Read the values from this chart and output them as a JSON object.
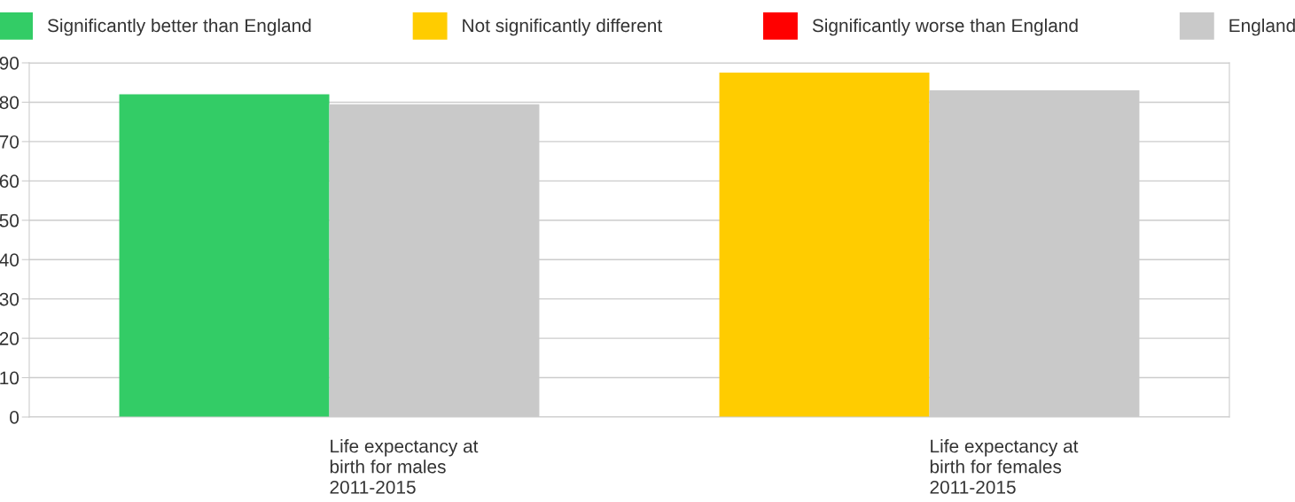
{
  "chart_data": {
    "type": "bar",
    "categories": [
      "Life expectancy at\nbirth for males\n2011-2015",
      "Life expectancy at\nbirth for females\n2011-2015"
    ],
    "series": [
      {
        "name": "Significantly better than England",
        "color": "#33cc66",
        "values": [
          82.0,
          null
        ]
      },
      {
        "name": "Not significantly different",
        "color": "#ffcc00",
        "values": [
          null,
          87.5
        ]
      },
      {
        "name": "Significantly worse than England",
        "color": "#ff0000",
        "values": [
          null,
          null
        ]
      },
      {
        "name": "England",
        "color": "#c9c9c9",
        "values": [
          79.5,
          83.0
        ]
      }
    ],
    "ylim": [
      0,
      90
    ],
    "yticks": [
      0,
      10,
      20,
      30,
      40,
      50,
      60,
      70,
      80,
      90
    ],
    "grid": "y",
    "legend": "top"
  }
}
